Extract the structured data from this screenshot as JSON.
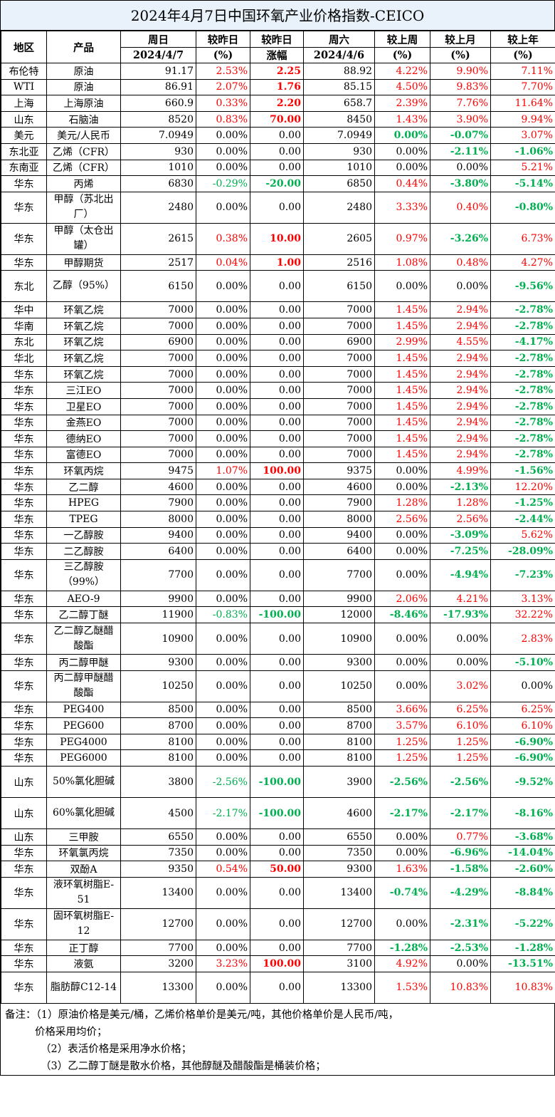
{
  "title": "2024年4月7日中国环氧产业价格指数-CEICO",
  "header": {
    "region": "地区",
    "product": "产品",
    "sunday": "周日",
    "sunday_date": "2024/4/7",
    "vs_yesterday": "较昨日",
    "pct": "(%)",
    "vs_yesterday2": "较昨日",
    "rise": "涨幅",
    "saturday": "周六",
    "saturday_date": "2024/4/6",
    "vs_last_week": "较上周",
    "vs_last_month": "较上月",
    "vs_last_year": "较上年"
  },
  "colors": {
    "red": "#ff0000",
    "green": "#00b050",
    "title_bg": "#e9f2fa"
  },
  "rows": [
    {
      "region": "布伦特",
      "product": "原油",
      "sun": "91.17",
      "dpct": "2.53%",
      "dpct_c": "red",
      "damt": "2.25",
      "damt_c": "red",
      "sat": "88.92",
      "wk": "4.22%",
      "wk_c": "red",
      "mo": "9.90%",
      "mo_c": "red",
      "yr": "7.11%",
      "yr_c": "red",
      "tall": false
    },
    {
      "region": "WTI",
      "product": "原油",
      "sun": "86.91",
      "dpct": "2.07%",
      "dpct_c": "red",
      "damt": "1.76",
      "damt_c": "red",
      "sat": "85.15",
      "wk": "4.50%",
      "wk_c": "red",
      "mo": "9.83%",
      "mo_c": "red",
      "yr": "7.70%",
      "yr_c": "red",
      "tall": false
    },
    {
      "region": "上海",
      "product": "上海原油",
      "sun": "660.9",
      "dpct": "0.33%",
      "dpct_c": "red",
      "damt": "2.20",
      "damt_c": "red",
      "sat": "658.7",
      "wk": "2.39%",
      "wk_c": "red",
      "mo": "7.76%",
      "mo_c": "red",
      "yr": "11.64%",
      "yr_c": "red",
      "tall": false
    },
    {
      "region": "山东",
      "product": "石脑油",
      "sun": "8520",
      "dpct": "0.83%",
      "dpct_c": "red",
      "damt": "70.00",
      "damt_c": "red",
      "sat": "8450",
      "wk": "1.43%",
      "wk_c": "red",
      "mo": "3.90%",
      "mo_c": "red",
      "yr": "9.94%",
      "yr_c": "red",
      "tall": false
    },
    {
      "region": "美元",
      "product": "美元/人民币",
      "sun": "7.0949",
      "dpct": "0.00%",
      "dpct_c": "",
      "damt": "0.00",
      "damt_c": "",
      "sat": "7.0949",
      "wk": "0.00%",
      "wk_c": "grn",
      "mo": "-0.07%",
      "mo_c": "grn",
      "yr": "3.07%",
      "yr_c": "red",
      "tall": false
    },
    {
      "region": "东北亚",
      "product": "乙烯（CFR）",
      "sun": "930",
      "dpct": "0.00%",
      "dpct_c": "",
      "damt": "0.00",
      "damt_c": "",
      "sat": "930",
      "wk": "0.00%",
      "wk_c": "",
      "mo": "-2.11%",
      "mo_c": "grn",
      "yr": "-1.06%",
      "yr_c": "grn",
      "tall": false
    },
    {
      "region": "东南亚",
      "product": "乙烯（CFR）",
      "sun": "1010",
      "dpct": "0.00%",
      "dpct_c": "",
      "damt": "0.00",
      "damt_c": "",
      "sat": "1010",
      "wk": "0.00%",
      "wk_c": "",
      "mo": "0.00%",
      "mo_c": "",
      "yr": "5.21%",
      "yr_c": "red",
      "tall": false
    },
    {
      "region": "华东",
      "product": "丙烯",
      "sun": "6830",
      "dpct": "-0.29%",
      "dpct_c": "grn",
      "damt": "-20.00",
      "damt_c": "grn",
      "sat": "6850",
      "wk": "0.44%",
      "wk_c": "red",
      "mo": "-3.80%",
      "mo_c": "grn",
      "yr": "-5.14%",
      "yr_c": "grn",
      "tall": false
    },
    {
      "region": "华东",
      "product": "甲醇（苏北出厂）",
      "sun": "2480",
      "dpct": "0.00%",
      "dpct_c": "",
      "damt": "0.00",
      "damt_c": "",
      "sat": "2480",
      "wk": "3.33%",
      "wk_c": "red",
      "mo": "0.40%",
      "mo_c": "red",
      "yr": "-0.80%",
      "yr_c": "grn",
      "tall": true
    },
    {
      "region": "华东",
      "product": "甲醇（太仓出罐）",
      "sun": "2615",
      "dpct": "0.38%",
      "dpct_c": "red",
      "damt": "10.00",
      "damt_c": "red",
      "sat": "2605",
      "wk": "0.97%",
      "wk_c": "red",
      "mo": "-3.26%",
      "mo_c": "grn",
      "yr": "6.73%",
      "yr_c": "red",
      "tall": true
    },
    {
      "region": "华东",
      "product": "甲醇期货",
      "sun": "2517",
      "dpct": "0.04%",
      "dpct_c": "red",
      "damt": "1.00",
      "damt_c": "red",
      "sat": "2516",
      "wk": "1.08%",
      "wk_c": "red",
      "mo": "0.48%",
      "mo_c": "red",
      "yr": "4.27%",
      "yr_c": "red",
      "tall": false
    },
    {
      "region": "东北",
      "product": "乙醇（95%）",
      "sun": "6150",
      "dpct": "0.00%",
      "dpct_c": "",
      "damt": "0.00",
      "damt_c": "",
      "sat": "6150",
      "wk": "0.00%",
      "wk_c": "",
      "mo": "0.00%",
      "mo_c": "",
      "yr": "-9.56%",
      "yr_c": "grn",
      "tall": true
    },
    {
      "region": "华中",
      "product": "环氧乙烷",
      "sun": "7000",
      "dpct": "0.00%",
      "dpct_c": "",
      "damt": "0.00",
      "damt_c": "",
      "sat": "7000",
      "wk": "1.45%",
      "wk_c": "red",
      "mo": "2.94%",
      "mo_c": "red",
      "yr": "-2.78%",
      "yr_c": "grn",
      "tall": false
    },
    {
      "region": "华南",
      "product": "环氧乙烷",
      "sun": "7000",
      "dpct": "0.00%",
      "dpct_c": "",
      "damt": "0.00",
      "damt_c": "",
      "sat": "7000",
      "wk": "1.45%",
      "wk_c": "red",
      "mo": "2.94%",
      "mo_c": "red",
      "yr": "-2.78%",
      "yr_c": "grn",
      "tall": false
    },
    {
      "region": "东北",
      "product": "环氧乙烷",
      "sun": "6900",
      "dpct": "0.00%",
      "dpct_c": "",
      "damt": "0.00",
      "damt_c": "",
      "sat": "6900",
      "wk": "2.99%",
      "wk_c": "red",
      "mo": "4.55%",
      "mo_c": "red",
      "yr": "-4.17%",
      "yr_c": "grn",
      "tall": false
    },
    {
      "region": "华北",
      "product": "环氧乙烷",
      "sun": "7000",
      "dpct": "0.00%",
      "dpct_c": "",
      "damt": "0.00",
      "damt_c": "",
      "sat": "7000",
      "wk": "1.45%",
      "wk_c": "red",
      "mo": "2.94%",
      "mo_c": "red",
      "yr": "-2.78%",
      "yr_c": "grn",
      "tall": false
    },
    {
      "region": "华东",
      "product": "环氧乙烷",
      "sun": "7000",
      "dpct": "0.00%",
      "dpct_c": "",
      "damt": "0.00",
      "damt_c": "",
      "sat": "7000",
      "wk": "1.45%",
      "wk_c": "red",
      "mo": "2.94%",
      "mo_c": "red",
      "yr": "-2.78%",
      "yr_c": "grn",
      "tall": false
    },
    {
      "region": "华东",
      "product": "三江EO",
      "sun": "7000",
      "dpct": "0.00%",
      "dpct_c": "",
      "damt": "0.00",
      "damt_c": "",
      "sat": "7000",
      "wk": "1.45%",
      "wk_c": "red",
      "mo": "2.94%",
      "mo_c": "red",
      "yr": "-2.78%",
      "yr_c": "grn",
      "tall": false
    },
    {
      "region": "华东",
      "product": "卫星EO",
      "sun": "7000",
      "dpct": "0.00%",
      "dpct_c": "",
      "damt": "0.00",
      "damt_c": "",
      "sat": "7000",
      "wk": "1.45%",
      "wk_c": "red",
      "mo": "2.94%",
      "mo_c": "red",
      "yr": "-2.78%",
      "yr_c": "grn",
      "tall": false
    },
    {
      "region": "华东",
      "product": "金燕EO",
      "sun": "7000",
      "dpct": "0.00%",
      "dpct_c": "",
      "damt": "0.00",
      "damt_c": "",
      "sat": "7000",
      "wk": "1.45%",
      "wk_c": "red",
      "mo": "2.94%",
      "mo_c": "red",
      "yr": "-2.78%",
      "yr_c": "grn",
      "tall": false
    },
    {
      "region": "华东",
      "product": "德纳EO",
      "sun": "7000",
      "dpct": "0.00%",
      "dpct_c": "",
      "damt": "0.00",
      "damt_c": "",
      "sat": "7000",
      "wk": "1.45%",
      "wk_c": "red",
      "mo": "2.94%",
      "mo_c": "red",
      "yr": "-2.78%",
      "yr_c": "grn",
      "tall": false
    },
    {
      "region": "华东",
      "product": "富德EO",
      "sun": "7000",
      "dpct": "0.00%",
      "dpct_c": "",
      "damt": "0.00",
      "damt_c": "",
      "sat": "7000",
      "wk": "1.45%",
      "wk_c": "red",
      "mo": "2.94%",
      "mo_c": "red",
      "yr": "-2.78%",
      "yr_c": "grn",
      "tall": false
    },
    {
      "region": "华东",
      "product": "环氧丙烷",
      "sun": "9475",
      "dpct": "1.07%",
      "dpct_c": "red",
      "damt": "100.00",
      "damt_c": "red",
      "sat": "9375",
      "wk": "0.00%",
      "wk_c": "",
      "mo": "4.99%",
      "mo_c": "red",
      "yr": "-1.56%",
      "yr_c": "grn",
      "tall": false
    },
    {
      "region": "华东",
      "product": "乙二醇",
      "sun": "4600",
      "dpct": "0.00%",
      "dpct_c": "",
      "damt": "0.00",
      "damt_c": "",
      "sat": "4600",
      "wk": "0.00%",
      "wk_c": "",
      "mo": "-2.13%",
      "mo_c": "grn",
      "yr": "12.20%",
      "yr_c": "red",
      "tall": false
    },
    {
      "region": "华东",
      "product": "HPEG",
      "sun": "7900",
      "dpct": "0.00%",
      "dpct_c": "",
      "damt": "0.00",
      "damt_c": "",
      "sat": "7900",
      "wk": "1.28%",
      "wk_c": "red",
      "mo": "1.28%",
      "mo_c": "red",
      "yr": "-1.25%",
      "yr_c": "grn",
      "tall": false
    },
    {
      "region": "华东",
      "product": "TPEG",
      "sun": "8000",
      "dpct": "0.00%",
      "dpct_c": "",
      "damt": "0.00",
      "damt_c": "",
      "sat": "8000",
      "wk": "2.56%",
      "wk_c": "red",
      "mo": "2.56%",
      "mo_c": "red",
      "yr": "-2.44%",
      "yr_c": "grn",
      "tall": false
    },
    {
      "region": "华东",
      "product": "一乙醇胺",
      "sun": "9400",
      "dpct": "0.00%",
      "dpct_c": "",
      "damt": "0.00",
      "damt_c": "",
      "sat": "9400",
      "wk": "0.00%",
      "wk_c": "",
      "mo": "-3.09%",
      "mo_c": "grn",
      "yr": "5.62%",
      "yr_c": "red",
      "tall": false
    },
    {
      "region": "华东",
      "product": "二乙醇胺",
      "sun": "6400",
      "dpct": "0.00%",
      "dpct_c": "",
      "damt": "0.00",
      "damt_c": "",
      "sat": "6400",
      "wk": "0.00%",
      "wk_c": "",
      "mo": "-7.25%",
      "mo_c": "grn",
      "yr": "-28.09%",
      "yr_c": "grn",
      "tall": false
    },
    {
      "region": "华东",
      "product": "三乙醇胺（99%）",
      "sun": "7700",
      "dpct": "0.00%",
      "dpct_c": "",
      "damt": "0.00",
      "damt_c": "",
      "sat": "7700",
      "wk": "0.00%",
      "wk_c": "",
      "mo": "-4.94%",
      "mo_c": "grn",
      "yr": "-7.23%",
      "yr_c": "grn",
      "tall": true
    },
    {
      "region": "华东",
      "product": "AEO-9",
      "sun": "9900",
      "dpct": "0.00%",
      "dpct_c": "",
      "damt": "0.00",
      "damt_c": "",
      "sat": "9900",
      "wk": "2.06%",
      "wk_c": "red",
      "mo": "4.21%",
      "mo_c": "red",
      "yr": "3.13%",
      "yr_c": "red",
      "tall": false
    },
    {
      "region": "华东",
      "product": "乙二醇丁醚",
      "sun": "11900",
      "dpct": "-0.83%",
      "dpct_c": "grn",
      "damt": "-100.00",
      "damt_c": "grn",
      "sat": "12000",
      "wk": "-8.46%",
      "wk_c": "grn",
      "mo": "-17.93%",
      "mo_c": "grn",
      "yr": "32.22%",
      "yr_c": "red",
      "tall": false
    },
    {
      "region": "华东",
      "product": "乙二醇乙醚醋酸酯",
      "sun": "10900",
      "dpct": "0.00%",
      "dpct_c": "",
      "damt": "0.00",
      "damt_c": "",
      "sat": "10900",
      "wk": "0.00%",
      "wk_c": "",
      "mo": "0.00%",
      "mo_c": "",
      "yr": "2.83%",
      "yr_c": "red",
      "tall": true
    },
    {
      "region": "华东",
      "product": "丙二醇甲醚",
      "sun": "9300",
      "dpct": "0.00%",
      "dpct_c": "",
      "damt": "0.00",
      "damt_c": "",
      "sat": "9300",
      "wk": "0.00%",
      "wk_c": "",
      "mo": "0.00%",
      "mo_c": "",
      "yr": "-5.10%",
      "yr_c": "grn",
      "tall": false
    },
    {
      "region": "华东",
      "product": "丙二醇甲醚醋酸酯",
      "sun": "10250",
      "dpct": "0.00%",
      "dpct_c": "",
      "damt": "0.00",
      "damt_c": "",
      "sat": "10250",
      "wk": "0.00%",
      "wk_c": "",
      "mo": "3.02%",
      "mo_c": "red",
      "yr": "0.00%",
      "yr_c": "",
      "tall": true
    },
    {
      "region": "华东",
      "product": "PEG400",
      "sun": "8500",
      "dpct": "0.00%",
      "dpct_c": "",
      "damt": "0.00",
      "damt_c": "",
      "sat": "8500",
      "wk": "3.66%",
      "wk_c": "red",
      "mo": "6.25%",
      "mo_c": "red",
      "yr": "6.25%",
      "yr_c": "red",
      "tall": false
    },
    {
      "region": "华东",
      "product": "PEG600",
      "sun": "8700",
      "dpct": "0.00%",
      "dpct_c": "",
      "damt": "0.00",
      "damt_c": "",
      "sat": "8700",
      "wk": "3.57%",
      "wk_c": "red",
      "mo": "6.10%",
      "mo_c": "red",
      "yr": "6.10%",
      "yr_c": "red",
      "tall": false
    },
    {
      "region": "华东",
      "product": "PEG4000",
      "sun": "8100",
      "dpct": "0.00%",
      "dpct_c": "",
      "damt": "0.00",
      "damt_c": "",
      "sat": "8100",
      "wk": "1.25%",
      "wk_c": "red",
      "mo": "1.25%",
      "mo_c": "red",
      "yr": "-6.90%",
      "yr_c": "grn",
      "tall": false
    },
    {
      "region": "华东",
      "product": "PEG6000",
      "sun": "8100",
      "dpct": "0.00%",
      "dpct_c": "",
      "damt": "0.00",
      "damt_c": "",
      "sat": "8100",
      "wk": "1.25%",
      "wk_c": "red",
      "mo": "1.25%",
      "mo_c": "red",
      "yr": "-6.90%",
      "yr_c": "grn",
      "tall": false
    },
    {
      "region": "山东",
      "product": "50%氯化胆碱",
      "sun": "3800",
      "dpct": "-2.56%",
      "dpct_c": "grn",
      "damt": "-100.00",
      "damt_c": "grn",
      "sat": "3900",
      "wk": "-2.56%",
      "wk_c": "grn",
      "mo": "-2.56%",
      "mo_c": "grn",
      "yr": "-9.52%",
      "yr_c": "grn",
      "tall": true
    },
    {
      "region": "山东",
      "product": "60%氯化胆碱",
      "sun": "4500",
      "dpct": "-2.17%",
      "dpct_c": "grn",
      "damt": "-100.00",
      "damt_c": "grn",
      "sat": "4600",
      "wk": "-2.17%",
      "wk_c": "grn",
      "mo": "-2.17%",
      "mo_c": "grn",
      "yr": "-8.16%",
      "yr_c": "grn",
      "tall": true
    },
    {
      "region": "山东",
      "product": "三甲胺",
      "sun": "6550",
      "dpct": "0.00%",
      "dpct_c": "",
      "damt": "0.00",
      "damt_c": "",
      "sat": "6550",
      "wk": "0.00%",
      "wk_c": "",
      "mo": "0.77%",
      "mo_c": "red",
      "yr": "-3.68%",
      "yr_c": "grn",
      "tall": false
    },
    {
      "region": "华东",
      "product": "环氧氯丙烷",
      "sun": "7350",
      "dpct": "0.00%",
      "dpct_c": "",
      "damt": "0.00",
      "damt_c": "",
      "sat": "7350",
      "wk": "0.00%",
      "wk_c": "",
      "mo": "-6.96%",
      "mo_c": "grn",
      "yr": "-14.04%",
      "yr_c": "grn",
      "tall": false
    },
    {
      "region": "华东",
      "product": "双酚A",
      "sun": "9350",
      "dpct": "0.54%",
      "dpct_c": "red",
      "damt": "50.00",
      "damt_c": "red",
      "sat": "9300",
      "wk": "1.63%",
      "wk_c": "red",
      "mo": "-1.58%",
      "mo_c": "grn",
      "yr": "-2.60%",
      "yr_c": "grn",
      "tall": false
    },
    {
      "region": "华东",
      "product": "液环氧树脂E-51",
      "sun": "13400",
      "dpct": "0.00%",
      "dpct_c": "",
      "damt": "0.00",
      "damt_c": "",
      "sat": "13400",
      "wk": "-0.74%",
      "wk_c": "grn",
      "mo": "-4.29%",
      "mo_c": "grn",
      "yr": "-8.84%",
      "yr_c": "grn",
      "tall": true
    },
    {
      "region": "华东",
      "product": "固环氧树脂E-12",
      "sun": "12700",
      "dpct": "0.00%",
      "dpct_c": "",
      "damt": "0.00",
      "damt_c": "",
      "sat": "12700",
      "wk": "0.00%",
      "wk_c": "",
      "mo": "-2.31%",
      "mo_c": "grn",
      "yr": "-5.22%",
      "yr_c": "grn",
      "tall": true
    },
    {
      "region": "华东",
      "product": "正丁醇",
      "sun": "7700",
      "dpct": "0.00%",
      "dpct_c": "",
      "damt": "0.00",
      "damt_c": "",
      "sat": "7700",
      "wk": "-1.28%",
      "wk_c": "grn",
      "mo": "-2.53%",
      "mo_c": "grn",
      "yr": "-1.28%",
      "yr_c": "grn",
      "tall": false
    },
    {
      "region": "华东",
      "product": "液氨",
      "sun": "3200",
      "dpct": "3.23%",
      "dpct_c": "red",
      "damt": "100.00",
      "damt_c": "red",
      "sat": "3100",
      "wk": "4.92%",
      "wk_c": "red",
      "mo": "0.00%",
      "mo_c": "",
      "yr": "-13.51%",
      "yr_c": "grn",
      "tall": false
    },
    {
      "region": "华东",
      "product": "脂肪醇C12-14",
      "sun": "13300",
      "dpct": "0.00%",
      "dpct_c": "",
      "damt": "0.00",
      "damt_c": "",
      "sat": "13300",
      "wk": "1.53%",
      "wk_c": "red",
      "mo": "10.83%",
      "mo_c": "red",
      "yr": "10.83%",
      "yr_c": "red",
      "tall": true
    }
  ],
  "notes": {
    "line1": "备注：（1）原油价格是美元/桶，乙烯价格单价是美元/吨，其他价格单价是人民币/吨，",
    "line2": "价格采用均价；",
    "line3": "（2）表活价格是采用净水价格；",
    "line4": "（3）乙二醇丁醚是散水价格，其他醇醚及醋酸酯是桶装价格；"
  }
}
